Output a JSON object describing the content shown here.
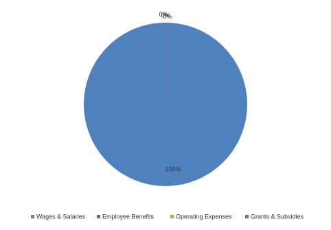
{
  "chart_data": {
    "type": "pie",
    "categories": [
      "Wages & Salaries",
      "Employee Benefits",
      "Operating Expenses",
      "Grants & Subsidies"
    ],
    "values": [
      100,
      0,
      0,
      0
    ],
    "value_labels": [
      "100%",
      "0%",
      "0%",
      "0%"
    ],
    "colors": [
      "#4f81bd",
      "#c0504d",
      "#9bbb59",
      "#8064a2"
    ],
    "legend": "bottom"
  }
}
